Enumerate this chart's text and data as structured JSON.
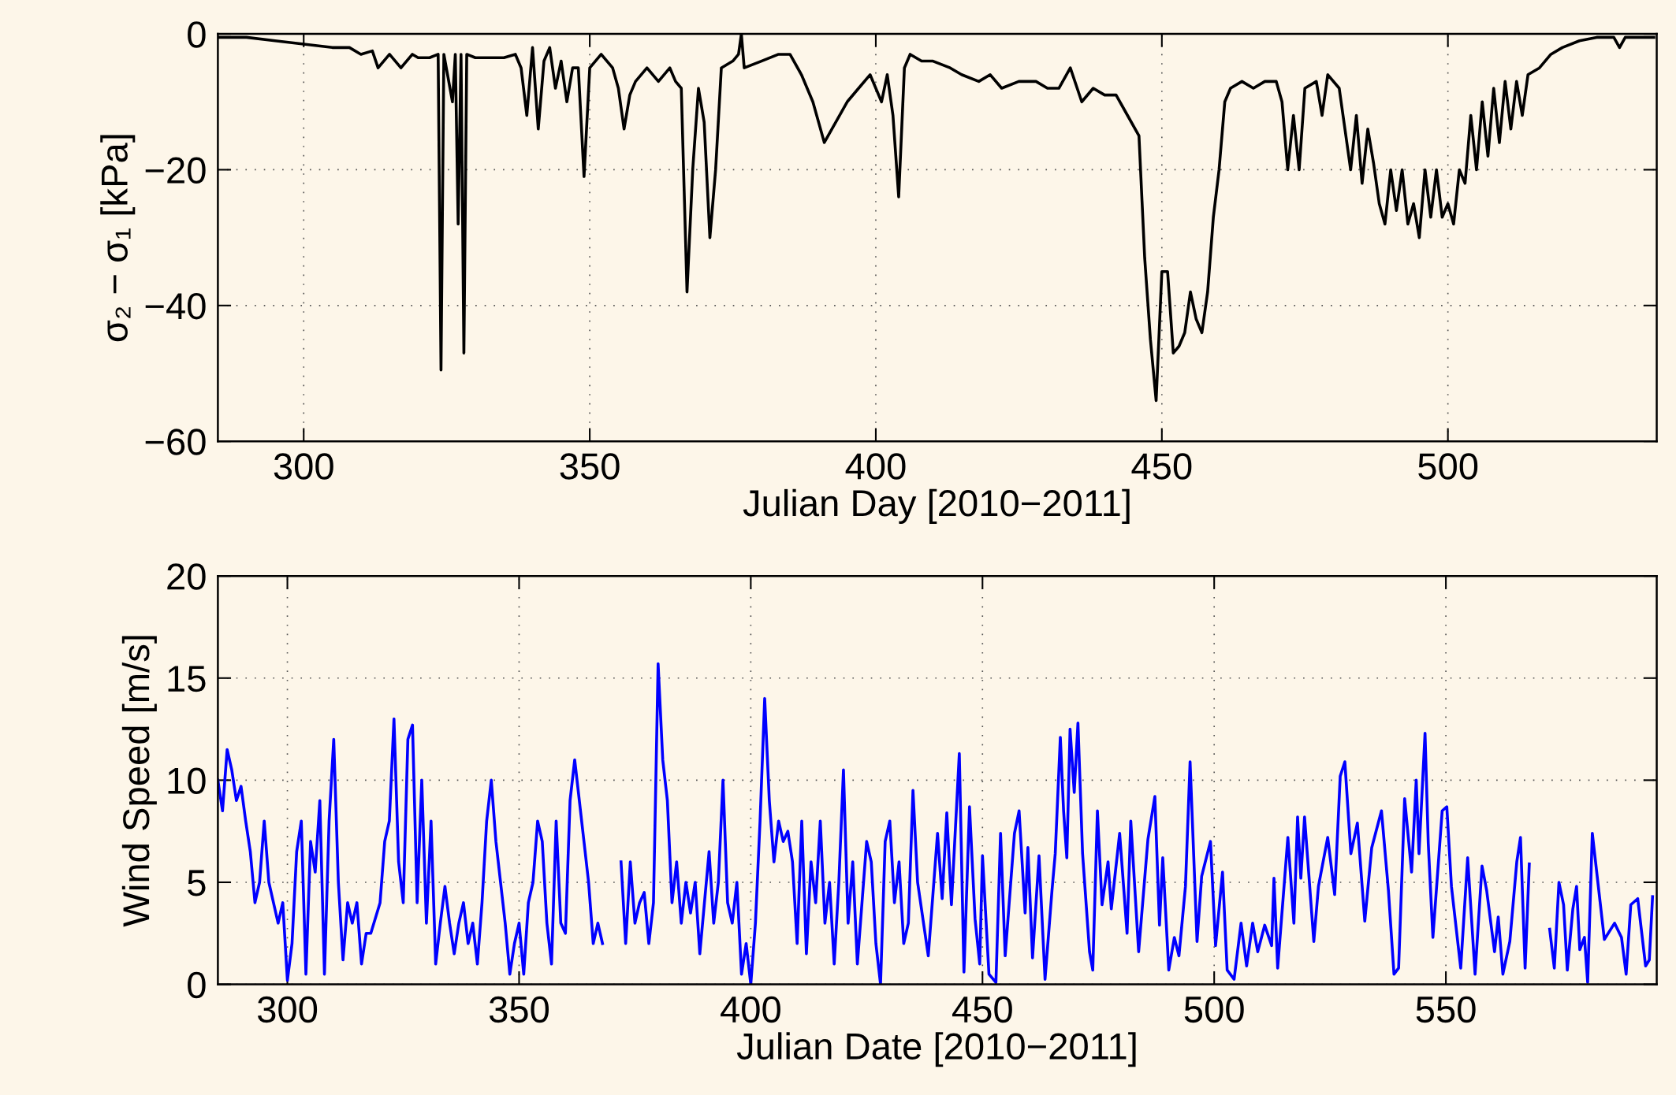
{
  "chart_data": [
    {
      "type": "line",
      "xlabel": "Julian Day [2010−2011]",
      "ylabel": "σ₂ − σ₁ [kPa]",
      "xlim": [
        285,
        536.5
      ],
      "ylim": [
        -60,
        0
      ],
      "xticks": [
        300,
        350,
        400,
        450,
        500
      ],
      "yticks": [
        -60,
        -40,
        -20,
        0
      ],
      "grid": true,
      "marker": "none",
      "line_style": "solid",
      "series": [
        {
          "color": "#000000",
          "x": [
            285,
            290,
            295,
            300,
            305,
            308,
            310,
            312,
            313,
            315,
            317,
            319,
            320,
            322,
            323.5,
            324,
            324.5,
            326,
            326.5,
            327,
            327.5,
            328,
            328.5,
            330,
            335,
            337,
            338,
            339,
            340,
            341,
            342,
            343,
            344,
            345,
            346,
            347,
            348,
            349,
            350,
            352,
            354,
            355,
            356,
            357,
            358,
            360,
            362,
            364,
            365,
            366,
            367,
            368,
            369,
            370,
            371,
            372,
            373,
            375,
            376,
            376.5,
            377,
            380,
            383,
            385,
            387,
            389,
            391,
            393,
            395,
            397,
            399,
            401,
            402,
            403,
            404,
            405,
            406,
            408,
            410,
            413,
            415,
            418,
            420,
            422,
            425,
            428,
            430,
            432,
            434,
            436,
            438,
            440,
            442,
            444,
            446,
            447,
            448,
            449,
            450,
            451,
            452,
            453,
            454,
            455,
            456,
            457,
            458,
            459,
            460,
            461,
            462,
            464,
            466,
            468,
            470,
            471,
            472,
            473,
            474,
            475,
            477,
            478,
            479,
            481,
            482,
            483,
            484,
            485,
            486,
            487,
            488,
            489,
            490,
            491,
            492,
            493,
            494,
            495,
            496,
            497,
            498,
            499,
            500,
            501,
            502,
            503,
            504,
            505,
            506,
            507,
            508,
            509,
            510,
            511,
            512,
            513,
            514,
            516,
            518,
            520,
            523,
            526,
            529,
            530,
            531,
            536
          ],
          "values": [
            -0.5,
            -0.5,
            -1,
            -1.5,
            -2,
            -2,
            -3,
            -2.5,
            -5,
            -3,
            -5,
            -3,
            -3.5,
            -3.5,
            -3,
            -49.5,
            -3,
            -10,
            -3,
            -28,
            -3,
            -47,
            -3,
            -3.5,
            -3.5,
            -3,
            -5,
            -12,
            -2,
            -14,
            -4,
            -2,
            -8,
            -4,
            -10,
            -5,
            -5,
            -21,
            -5,
            -3,
            -5,
            -8,
            -14,
            -9,
            -7,
            -5,
            -7,
            -5,
            -7,
            -8,
            -38,
            -20,
            -8,
            -13,
            -30,
            -20,
            -5,
            -4,
            -3,
            0,
            -5,
            -4,
            -3,
            -3,
            -6,
            -10,
            -16,
            -13,
            -10,
            -8,
            -6,
            -10,
            -6,
            -12,
            -24,
            -5,
            -3,
            -4,
            -4,
            -5,
            -6,
            -7,
            -6,
            -8,
            -7,
            -7,
            -8,
            -8,
            -5,
            -10,
            -8,
            -9,
            -9,
            -12,
            -15,
            -33,
            -45,
            -54,
            -35,
            -35,
            -47,
            -46,
            -44,
            -38,
            -42,
            -44,
            -38,
            -27,
            -20,
            -10,
            -8,
            -7,
            -8,
            -7,
            -7,
            -10,
            -20,
            -12,
            -20,
            -8,
            -7,
            -12,
            -6,
            -8,
            -14,
            -20,
            -12,
            -22,
            -14,
            -19,
            -25,
            -28,
            -20,
            -26,
            -20,
            -28,
            -25,
            -30,
            -20,
            -27,
            -20,
            -27,
            -25,
            -28,
            -20,
            -22,
            -12,
            -20,
            -10,
            -18,
            -8,
            -16,
            -7,
            -14,
            -7,
            -12,
            -6,
            -5,
            -3,
            -2,
            -1,
            -0.5,
            -0.5,
            -2,
            -0.5,
            -0.5
          ]
        }
      ]
    },
    {
      "type": "line",
      "xlabel": "Julian Date [2010−2011]",
      "ylabel": "Wind Speed [m/s]",
      "xlim": [
        285,
        595.5
      ],
      "ylim": [
        0,
        20
      ],
      "xticks": [
        300,
        350,
        400,
        450,
        500,
        550
      ],
      "yticks": [
        0,
        5,
        10,
        15,
        20
      ],
      "grid": true,
      "marker": "none",
      "line_style": "solid",
      "series": [
        {
          "color": "#0000ff",
          "x": [
            285,
            286,
            287,
            288,
            289,
            290,
            291,
            292,
            293,
            294,
            295,
            296,
            297,
            298,
            299,
            300,
            301,
            302,
            303,
            304,
            305,
            306,
            307,
            308,
            309,
            310,
            311,
            312,
            313,
            314,
            315,
            316,
            317,
            318,
            320,
            321,
            322,
            323,
            324,
            325,
            326,
            327,
            328,
            329,
            330,
            331,
            332,
            333,
            334,
            335,
            336,
            337,
            338,
            339,
            340,
            341,
            342,
            343,
            344,
            345,
            346,
            347,
            348,
            349,
            350,
            351,
            352,
            353,
            354,
            355,
            356,
            357,
            358,
            359,
            360,
            361,
            362,
            363,
            364,
            365,
            366,
            367,
            368,
            370,
            372,
            373,
            374,
            375,
            376,
            377,
            378,
            379,
            380,
            381,
            382,
            383,
            384,
            385,
            386,
            387,
            388,
            389,
            390,
            391,
            392,
            393,
            394,
            395,
            396,
            397,
            398,
            399,
            400,
            401,
            402,
            403,
            404,
            405,
            406,
            407,
            408,
            409,
            410,
            411,
            412,
            413,
            414,
            415,
            416,
            417,
            418,
            419,
            420,
            421,
            422,
            423,
            424,
            425,
            426,
            427,
            428,
            429,
            430,
            431,
            432,
            433,
            434,
            435,
            436,
            438.3,
            440.3,
            441.3,
            442.3,
            443.3,
            445,
            446,
            447.2,
            448.4,
            449.4,
            450,
            451.4,
            452.9,
            453.9,
            454.9,
            456.9,
            457.9,
            459.2,
            459.8,
            460.8,
            462.2,
            463.5,
            465,
            465.7,
            466.8,
            467.5,
            468.2,
            468.9,
            469.8,
            470.6,
            471.6,
            473.1,
            473.8,
            474.8,
            475.8,
            477.1,
            477.8,
            479.6,
            481.2,
            482,
            483.7,
            485.7,
            487.2,
            488.2,
            488.9,
            490.2,
            491.4,
            492.4,
            493.8,
            494.8,
            496.3,
            497.3,
            499.2,
            500.3,
            501.8,
            502.8,
            504.3,
            505.8,
            507,
            508.3,
            509.4,
            510.9,
            512.4,
            512.9,
            513.7,
            515.9,
            517.2,
            518,
            518.7,
            519.5,
            521.5,
            522.5,
            524.5,
            526,
            527.2,
            528.2,
            529.5,
            530.9,
            532.5,
            534,
            536.1,
            537.6,
            538.8,
            539.8,
            541.1,
            542.6,
            543.6,
            544.2,
            545.5,
            546.2,
            547.2,
            549.2,
            550.2,
            551.2,
            553.2,
            554.7,
            556.3,
            557.8,
            558.8,
            560.5,
            561.3,
            562.3,
            563.8,
            565.3,
            566.1,
            567.1,
            568,
            570,
            572.4,
            573.4,
            574.4,
            575.4,
            576.2,
            577.4,
            578.2,
            578.9,
            579.9,
            580.6,
            581.6,
            582.9,
            584.2,
            586.4,
            587.9,
            588.9,
            589.9,
            591.4,
            593.1,
            593.9,
            594.6
          ],
          "values": [
            10,
            8.5,
            11.5,
            10.5,
            9,
            9.7,
            8,
            6.5,
            4,
            5,
            8,
            5,
            4,
            3,
            4,
            0.2,
            2,
            6.5,
            8,
            0.5,
            7,
            5.5,
            9,
            0.5,
            8,
            12,
            5,
            1.2,
            4,
            3,
            4,
            1,
            2.5,
            2.5,
            4,
            7,
            8,
            13,
            6,
            4,
            12,
            12.7,
            4,
            10,
            3,
            8,
            1,
            3,
            4.8,
            3,
            1.5,
            3,
            4,
            2,
            3,
            1,
            4,
            8,
            10,
            7,
            5,
            3,
            0.5,
            2,
            3,
            0.5,
            4,
            5,
            8,
            7,
            3,
            1,
            8,
            3,
            2.5,
            9,
            11,
            9,
            7,
            5,
            2,
            3,
            2,
            null,
            6,
            2,
            6,
            3,
            4,
            4.5,
            2,
            4,
            15.7,
            11,
            9,
            4,
            6,
            3,
            5,
            3.5,
            5,
            1.5,
            4,
            6.5,
            3,
            5,
            10,
            4,
            3,
            5,
            0.5,
            2,
            0,
            3,
            8,
            14,
            9,
            6,
            8,
            7,
            7.5,
            6,
            2,
            8,
            1.5,
            6,
            4,
            8,
            3,
            5,
            1,
            5,
            10.5,
            3,
            6,
            1,
            4,
            7,
            6,
            2,
            0,
            7,
            8,
            4,
            6,
            2,
            3,
            9.5,
            5,
            1.4,
            7.4,
            4.2,
            8.4,
            3.9,
            11.3,
            0.6,
            8.7,
            3.2,
            1,
            6.3,
            0.5,
            0.1,
            7.4,
            1.4,
            7.4,
            8.5,
            3.5,
            6.7,
            1.3,
            6.3,
            0.25,
            4.6,
            6.4,
            12.1,
            8.5,
            6.2,
            12.5,
            9.4,
            12.8,
            6.4,
            1.6,
            0.7,
            8.5,
            3.9,
            6,
            3.7,
            7.4,
            2.5,
            8,
            1.6,
            7.1,
            9.2,
            2.9,
            6.2,
            0.7,
            2.3,
            1.4,
            4.8,
            10.9,
            2.1,
            5.3,
            7,
            1.9,
            5.5,
            0.7,
            0.25,
            3,
            0.9,
            3,
            1.6,
            2.9,
            1.9,
            5.2,
            0.8,
            7.2,
            3,
            8.2,
            5.2,
            8.2,
            2.1,
            4.8,
            7.2,
            4.4,
            10.2,
            10.9,
            6.4,
            7.9,
            3.1,
            6.7,
            8.5,
            4.6,
            0.5,
            0.8,
            9.1,
            5.5,
            10,
            6.4,
            12.3,
            6.9,
            2.3,
            8.5,
            8.7,
            4.8,
            0.8,
            6.2,
            0.5,
            5.8,
            4.6,
            1.6,
            3.3,
            0.5,
            2.1,
            6,
            7.2,
            0.8,
            5.9,
            null,
            2.7,
            0.8,
            5,
            3.9,
            0.7,
            3.7,
            4.8,
            1.7,
            2.3,
            0.1,
            7.4,
            4.8,
            2.2,
            3,
            2.3,
            0.5,
            3.9,
            4.2,
            0.9,
            1.2,
            4.3
          ]
        }
      ]
    }
  ]
}
